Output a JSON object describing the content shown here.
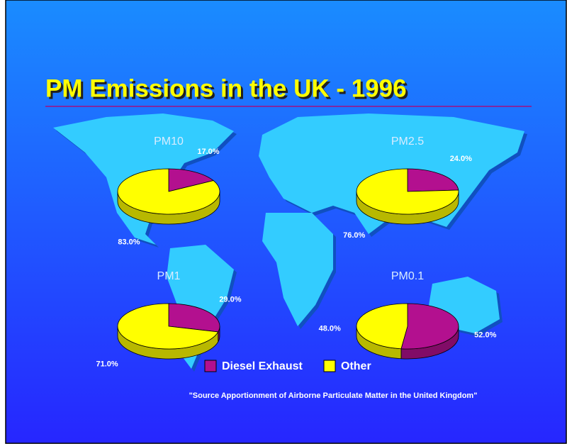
{
  "title": "PM Emissions in the UK - 1996",
  "source": "\"Source Apportionment of Airborne Particulate Matter in the United Kingdom\"",
  "chart_data": [
    {
      "type": "pie",
      "title": "PM10",
      "categories": [
        "Diesel Exhaust",
        "Other"
      ],
      "values": [
        17,
        83
      ],
      "value_labels": [
        "17.0%",
        "83.0%"
      ],
      "colors": [
        "#b3108f",
        "#ffff00"
      ]
    },
    {
      "type": "pie",
      "title": "PM2.5",
      "categories": [
        "Diesel Exhaust",
        "Other"
      ],
      "values": [
        24,
        76
      ],
      "value_labels": [
        "24.0%",
        "76.0%"
      ],
      "colors": [
        "#b3108f",
        "#ffff00"
      ]
    },
    {
      "type": "pie",
      "title": "PM1",
      "categories": [
        "Diesel Exhaust",
        "Other"
      ],
      "values": [
        29,
        71
      ],
      "value_labels": [
        "29.0%",
        "71.0%"
      ],
      "colors": [
        "#b3108f",
        "#ffff00"
      ]
    },
    {
      "type": "pie",
      "title": "PM0.1",
      "categories": [
        "Diesel Exhaust",
        "Other"
      ],
      "values": [
        52,
        48
      ],
      "value_labels": [
        "52.0%",
        "48.0%"
      ],
      "colors": [
        "#b3108f",
        "#ffff00"
      ]
    }
  ]
}
